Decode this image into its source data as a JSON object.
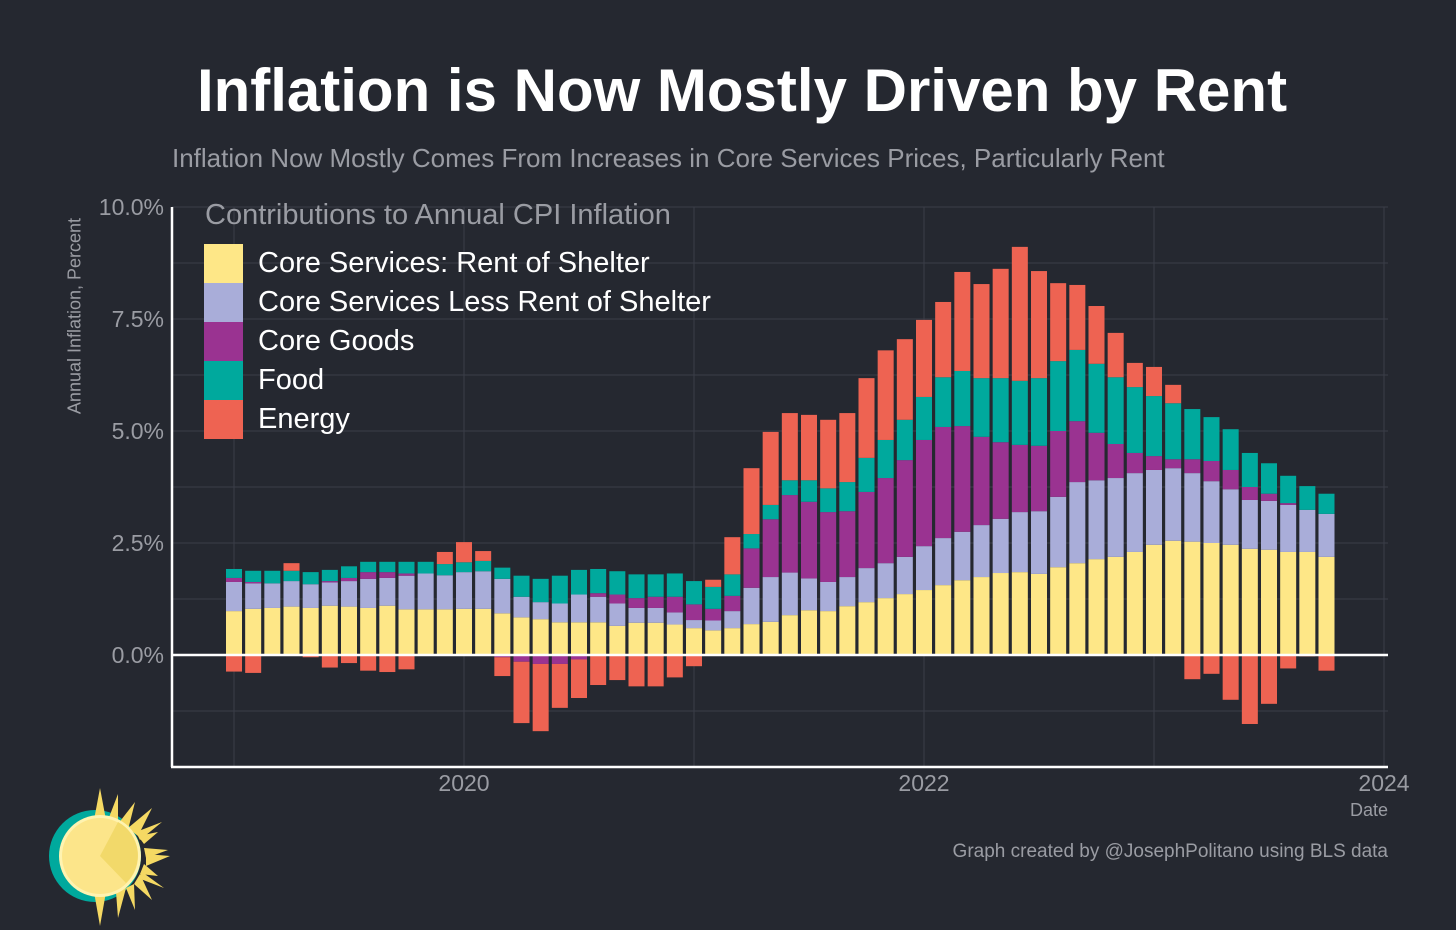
{
  "title": "Inflation is Now Mostly Driven by Rent",
  "subtitle": "Inflation Now Mostly Comes From Increases in Core Services Prices, Particularly Rent",
  "credit": "Graph created by @JosephPolitano using BLS data",
  "logo": "sun-logo",
  "colors": {
    "background": "#252830",
    "axis": "#ffffff",
    "grid": "#3a3e48",
    "text_muted": "#9a9ca3"
  },
  "chart_data": {
    "type": "bar",
    "stacked": true,
    "legend_title": "Contributions to Annual CPI Inflation",
    "legend_position": "top-left",
    "xlabel": "Date",
    "ylabel": "Annual Inflation, Percent",
    "ylim": [
      -2.5,
      10
    ],
    "yticks": [
      "10.0%",
      "7.5%",
      "5.0%",
      "2.5%",
      "0.0%"
    ],
    "ytick_values": [
      10,
      7.5,
      5,
      2.5,
      0
    ],
    "xticks": [
      "2020",
      "2022",
      "2024"
    ],
    "grid": true,
    "x": [
      "2019-01",
      "2019-02",
      "2019-03",
      "2019-04",
      "2019-05",
      "2019-06",
      "2019-07",
      "2019-08",
      "2019-09",
      "2019-10",
      "2019-11",
      "2019-12",
      "2020-01",
      "2020-02",
      "2020-03",
      "2020-04",
      "2020-05",
      "2020-06",
      "2020-07",
      "2020-08",
      "2020-09",
      "2020-10",
      "2020-11",
      "2020-12",
      "2021-01",
      "2021-02",
      "2021-03",
      "2021-04",
      "2021-05",
      "2021-06",
      "2021-07",
      "2021-08",
      "2021-09",
      "2021-10",
      "2021-11",
      "2021-12",
      "2022-01",
      "2022-02",
      "2022-03",
      "2022-04",
      "2022-05",
      "2022-06",
      "2022-07",
      "2022-08",
      "2022-09",
      "2022-10",
      "2022-11",
      "2022-12",
      "2023-01",
      "2023-02",
      "2023-03",
      "2023-04",
      "2023-05",
      "2023-06",
      "2023-07",
      "2023-08",
      "2023-09",
      "2023-10"
    ],
    "series": [
      {
        "name": "Core Services: Rent of Shelter",
        "color": "#FEE787",
        "values": [
          0.98,
          1.03,
          1.05,
          1.08,
          1.05,
          1.1,
          1.08,
          1.05,
          1.1,
          1.02,
          1.02,
          1.02,
          1.03,
          1.03,
          0.93,
          0.84,
          0.8,
          0.73,
          0.73,
          0.73,
          0.65,
          0.72,
          0.72,
          0.68,
          0.6,
          0.55,
          0.6,
          0.69,
          0.74,
          0.89,
          1.0,
          0.98,
          1.09,
          1.18,
          1.27,
          1.36,
          1.45,
          1.56,
          1.67,
          1.74,
          1.83,
          1.85,
          1.81,
          1.96,
          2.05,
          2.14,
          2.19,
          2.3,
          2.46,
          2.55,
          2.53,
          2.5,
          2.46,
          2.37,
          2.35,
          2.3,
          2.3,
          2.19
        ]
      },
      {
        "name": "Core Services Less Rent of Shelter",
        "color": "#A9ADD9",
        "values": [
          0.65,
          0.57,
          0.55,
          0.57,
          0.53,
          0.52,
          0.57,
          0.65,
          0.62,
          0.75,
          0.8,
          0.76,
          0.82,
          0.84,
          0.77,
          0.46,
          0.38,
          0.42,
          0.62,
          0.57,
          0.5,
          0.33,
          0.33,
          0.27,
          0.18,
          0.22,
          0.38,
          0.81,
          1.0,
          0.95,
          0.71,
          0.65,
          0.65,
          0.76,
          0.78,
          0.83,
          0.98,
          1.05,
          1.08,
          1.16,
          1.21,
          1.34,
          1.4,
          1.57,
          1.81,
          1.76,
          1.76,
          1.76,
          1.67,
          1.62,
          1.53,
          1.38,
          1.24,
          1.09,
          1.09,
          1.05,
          0.94,
          0.96
        ]
      },
      {
        "name": "Core Goods",
        "color": "#9A3391",
        "values": [
          0.09,
          0.03,
          0,
          0,
          0,
          0.03,
          0.07,
          0.15,
          0.13,
          0.05,
          0,
          0,
          -0.02,
          0,
          -0.05,
          -0.15,
          -0.2,
          -0.2,
          -0.1,
          0.08,
          0.2,
          0.22,
          0.25,
          0.35,
          0.35,
          0.26,
          0.34,
          0.88,
          1.29,
          1.73,
          1.71,
          1.56,
          1.47,
          1.7,
          1.9,
          2.16,
          2.37,
          2.48,
          2.36,
          1.97,
          1.71,
          1.5,
          1.46,
          1.47,
          1.36,
          1.06,
          0.76,
          0.45,
          0.31,
          0.2,
          0.31,
          0.45,
          0.43,
          0.29,
          0.16,
          0.04,
          0,
          0
        ]
      },
      {
        "name": "Food",
        "color": "#00A99D",
        "values": [
          0.2,
          0.25,
          0.28,
          0.23,
          0.27,
          0.25,
          0.26,
          0.23,
          0.23,
          0.26,
          0.26,
          0.25,
          0.22,
          0.23,
          0.25,
          0.47,
          0.52,
          0.62,
          0.55,
          0.54,
          0.52,
          0.53,
          0.5,
          0.52,
          0.52,
          0.49,
          0.48,
          0.32,
          0.32,
          0.33,
          0.48,
          0.53,
          0.65,
          0.76,
          0.85,
          0.9,
          0.96,
          1.11,
          1.23,
          1.31,
          1.43,
          1.43,
          1.51,
          1.56,
          1.59,
          1.54,
          1.49,
          1.47,
          1.34,
          1.25,
          1.12,
          0.98,
          0.91,
          0.76,
          0.68,
          0.61,
          0.53,
          0.45
        ]
      },
      {
        "name": "Energy",
        "color": "#EE6352",
        "values": [
          -0.37,
          -0.4,
          0,
          0.17,
          -0.05,
          -0.28,
          -0.18,
          -0.35,
          -0.38,
          -0.32,
          -0.02,
          0.27,
          0.45,
          0.22,
          -0.42,
          -1.37,
          -1.5,
          -0.98,
          -0.86,
          -0.67,
          -0.56,
          -0.7,
          -0.7,
          -0.5,
          -0.25,
          0.16,
          0.83,
          1.47,
          1.63,
          1.5,
          1.46,
          1.53,
          1.54,
          1.78,
          2.0,
          1.8,
          1.72,
          1.68,
          2.21,
          2.1,
          2.44,
          2.99,
          2.39,
          1.74,
          1.45,
          1.29,
          0.99,
          0.54,
          0.65,
          0.41,
          -0.54,
          -0.42,
          -1.0,
          -1.54,
          -1.09,
          -0.3,
          -0.03,
          -0.35
        ]
      }
    ]
  }
}
